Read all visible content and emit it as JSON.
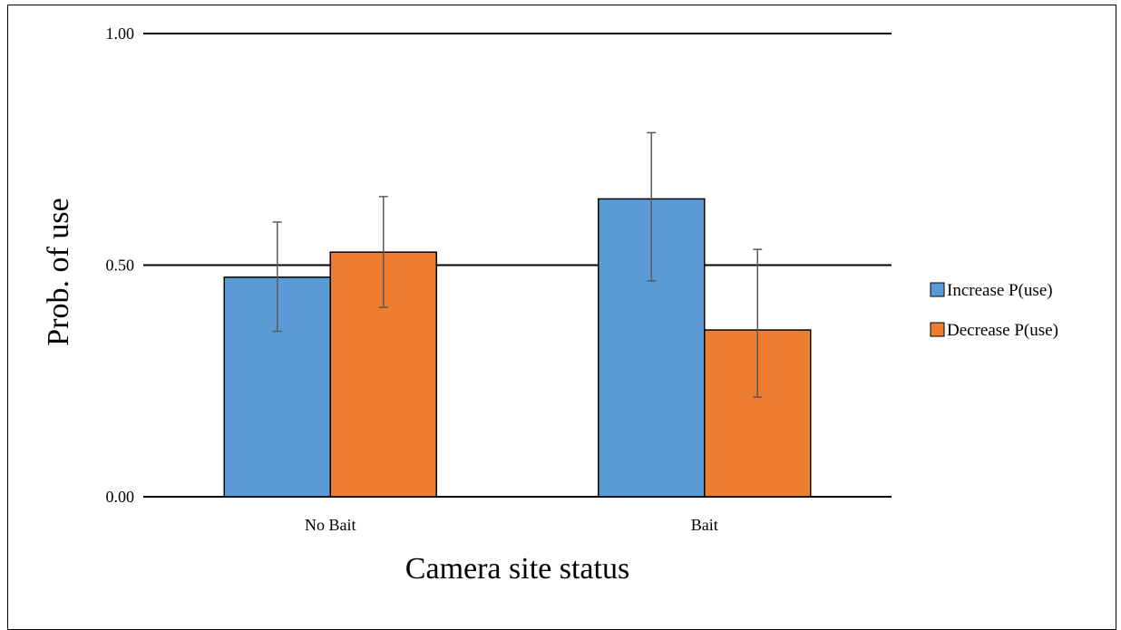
{
  "chart_data": {
    "type": "bar",
    "categories": [
      "No Bait",
      "Bait"
    ],
    "series": [
      {
        "name": "Increase P(use)",
        "color": "#5b9bd5",
        "values": [
          0.474,
          0.643
        ],
        "err_low": [
          0.357,
          0.466
        ],
        "err_high": [
          0.593,
          0.786
        ]
      },
      {
        "name": "Decrease P(use)",
        "color": "#ed7d31",
        "values": [
          0.528,
          0.36
        ],
        "err_low": [
          0.409,
          0.215
        ],
        "err_high": [
          0.648,
          0.534
        ]
      }
    ],
    "xlabel": "Camera site status",
    "ylabel": "Prob. of use",
    "ylim": [
      0,
      1
    ],
    "yticks": [
      "0.00",
      "0.50",
      "1.00"
    ],
    "grid": true,
    "legend_position": "right"
  }
}
